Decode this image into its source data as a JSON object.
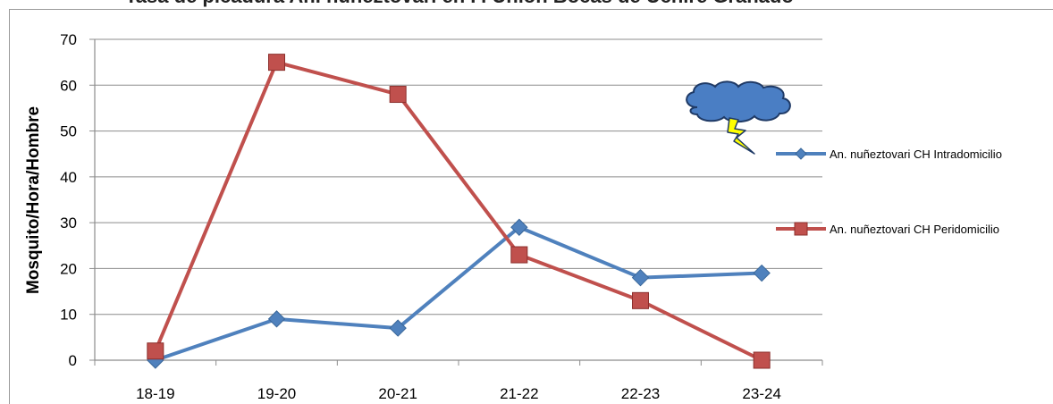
{
  "chart_data": {
    "type": "line",
    "title": "Tasa de picadura An. nuñeztovari en P. Unión Bocas de Uchire Granado",
    "ylabel": "Mosquito/Hora/Hombre",
    "xlabel": "",
    "categories": [
      "18-19",
      "19-20",
      "20-21",
      "21-22",
      "22-23",
      "23-24"
    ],
    "ylim": [
      0,
      70
    ],
    "yticks": [
      0,
      10,
      20,
      30,
      40,
      50,
      60,
      70
    ],
    "grid": true,
    "legend_position": "right",
    "series": [
      {
        "name": "An. nuñeztovari CH Intradomicilio",
        "values": [
          0,
          9,
          7,
          29,
          18,
          19
        ],
        "color": "#4f81bd",
        "marker": "diamond"
      },
      {
        "name": "An. nuñeztovari CH Peridomicilio",
        "values": [
          2,
          65,
          58,
          23,
          13,
          0
        ],
        "color": "#c0504d",
        "marker": "square"
      }
    ]
  },
  "decoration": {
    "icon": "storm-cloud-icon",
    "cloud_color": "#4a7ec4",
    "bolt_color": "#ffff00"
  }
}
